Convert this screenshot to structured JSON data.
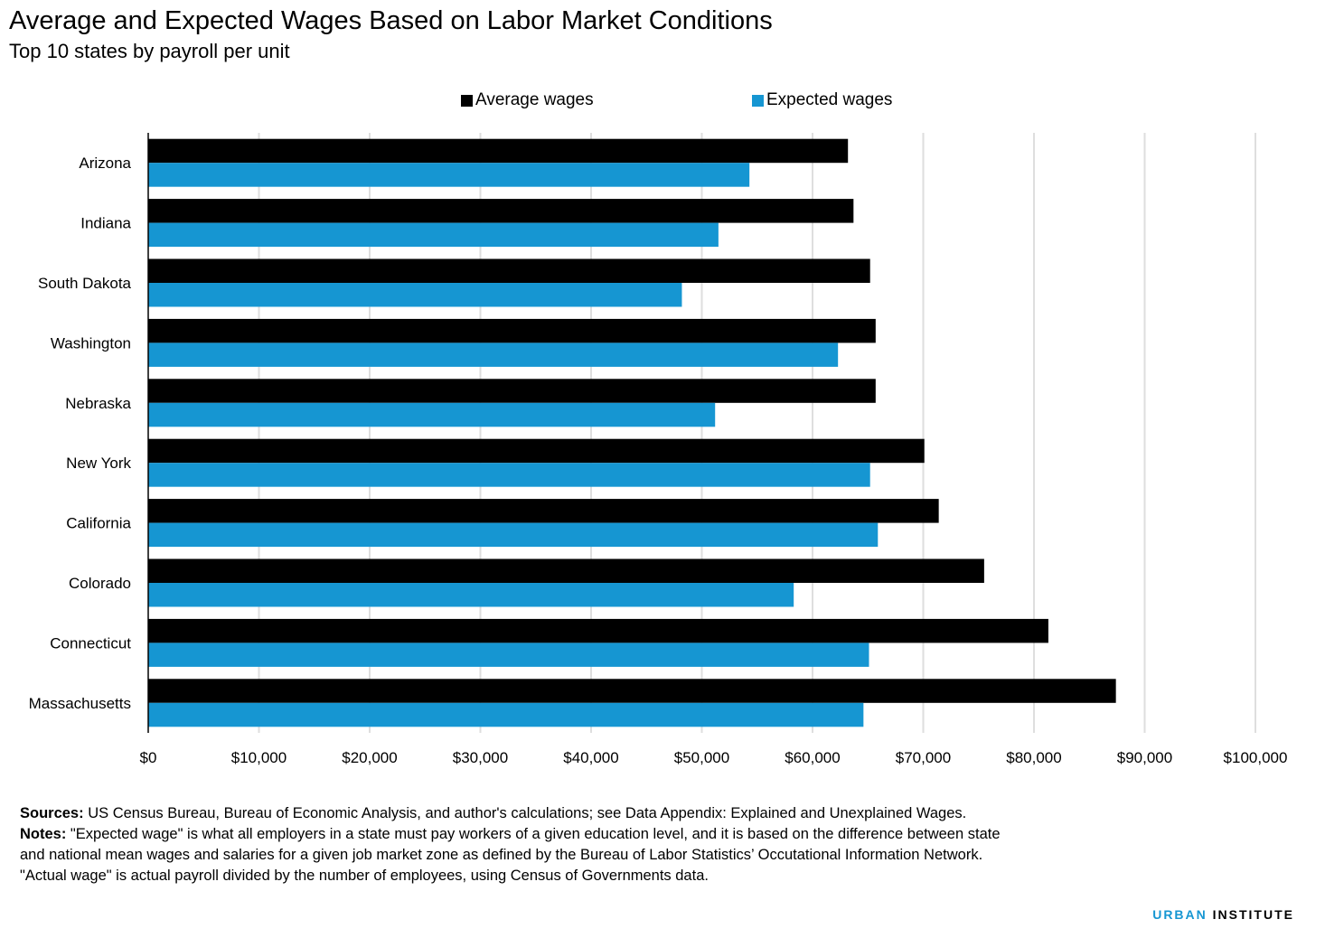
{
  "colors": {
    "average": "#000000",
    "expected": "#1696d2",
    "grid": "#dedede",
    "brand_blue": "#1696d2"
  },
  "chart_data": {
    "type": "bar",
    "orientation": "horizontal",
    "title": "Average and Expected Wages Based on Labor Market Conditions",
    "subtitle": "Top 10 states by payroll per unit",
    "categories": [
      "Arizona",
      "Indiana",
      "South Dakota",
      "Washington",
      "Nebraska",
      "New York",
      "California",
      "Colorado",
      "Connecticut",
      "Massachusetts"
    ],
    "series": [
      {
        "name": "Average wages",
        "values": [
          63200,
          63700,
          65200,
          65700,
          65700,
          70100,
          71400,
          75500,
          81300,
          87400
        ]
      },
      {
        "name": "Expected wages",
        "values": [
          54300,
          51500,
          48200,
          62300,
          51200,
          65200,
          65900,
          58300,
          65100,
          64600
        ]
      }
    ],
    "xlim": [
      0,
      100000
    ],
    "xticks": [
      0,
      10000,
      20000,
      30000,
      40000,
      50000,
      60000,
      70000,
      80000,
      90000,
      100000
    ],
    "xtick_labels": [
      "$0",
      "$10,000",
      "$20,000",
      "$30,000",
      "$40,000",
      "$50,000",
      "$60,000",
      "$70,000",
      "$80,000",
      "$90,000",
      "$100,000"
    ],
    "grid": "vertical",
    "legend_position": "top"
  },
  "notes": {
    "sources_label": "Sources:",
    "sources_text": " US Census Bureau, Bureau of Economic Analysis, and author's calculations; see Data Appendix: Explained and Unexplained Wages.",
    "notes_label": "Notes:",
    "notes_text_1": " \"Expected wage\" is what all employers in a state must pay workers of a given education level, and it is based on the difference between state",
    "notes_text_2": "and national mean wages and salaries for a given job market zone as defined by the Bureau of Labor Statistics’ Occutational Information Network.",
    "notes_text_3": "\"Actual wage\" is actual payroll divided by the number of employees, using Census of Governments data."
  },
  "brand": {
    "part1": "URBAN",
    "part2": "INSTITUTE"
  }
}
